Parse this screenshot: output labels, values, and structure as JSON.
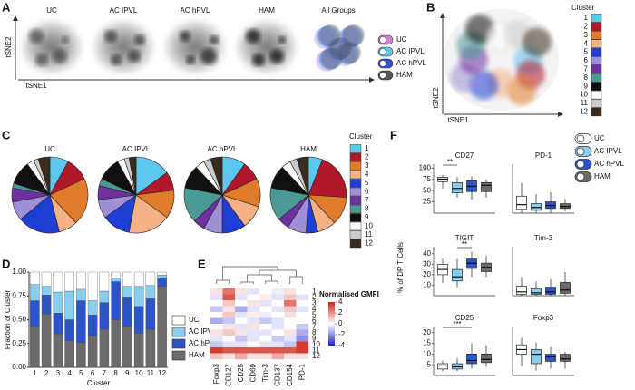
{
  "chart_data": [
    {
      "type": "tsne",
      "panel_label": "A",
      "groups": [
        "UC",
        "AC IPVL",
        "AC hPVL",
        "HAM",
        "All Groups"
      ],
      "xlabel": "tSNE1",
      "ylabel": "tSNE2",
      "legend": {
        "names": [
          "UC",
          "AC IPVL",
          "AC hPVL",
          "HAM"
        ],
        "colors": [
          "#d77fd8",
          "#5cc8f0",
          "#3050d8",
          "#555555"
        ]
      }
    },
    {
      "type": "tsne-clusters",
      "panel_label": "B",
      "legend_title": "Cluster",
      "xlabel": "tSNE1",
      "ylabel": "tSNE2",
      "clusters": [
        "1",
        "2",
        "3",
        "4",
        "5",
        "6",
        "7",
        "8",
        "9",
        "10",
        "11",
        "12"
      ],
      "colors": [
        "#5cc8f0",
        "#b2182b",
        "#e07b29",
        "#f4b183",
        "#1f3ed6",
        "#9e8fd6",
        "#7030a0",
        "#4a9a96",
        "#111111",
        "#ffffff",
        "#cccccc",
        "#3b2a1e"
      ]
    },
    {
      "type": "pie",
      "panel_label": "C",
      "legend_title": "Cluster",
      "categories": [
        "1",
        "2",
        "3",
        "4",
        "5",
        "6",
        "7",
        "8",
        "9",
        "10",
        "11",
        "12"
      ],
      "colors": [
        "#5cc8f0",
        "#b2182b",
        "#e07b29",
        "#f4b183",
        "#1f3ed6",
        "#9e8fd6",
        "#7030a0",
        "#4a9a96",
        "#111111",
        "#ffffff",
        "#cccccc",
        "#3b2a1e"
      ],
      "pies": [
        {
          "title": "UC",
          "values": [
            8,
            10,
            20,
            8,
            18,
            8,
            6,
            2,
            10,
            3,
            2,
            5
          ]
        },
        {
          "title": "AC IPVL",
          "values": [
            15,
            8,
            12,
            18,
            12,
            8,
            6,
            3,
            10,
            3,
            2,
            3
          ]
        },
        {
          "title": "AC hPVL",
          "values": [
            10,
            8,
            12,
            10,
            10,
            8,
            5,
            15,
            10,
            4,
            3,
            5
          ]
        },
        {
          "title": "HAM",
          "values": [
            6,
            20,
            12,
            8,
            5,
            8,
            5,
            14,
            10,
            4,
            3,
            5
          ]
        }
      ]
    },
    {
      "type": "stacked-bar",
      "panel_label": "D",
      "ylabel": "Fraction of Cluster",
      "xlabel": "Cluster",
      "categories": [
        "1",
        "2",
        "3",
        "4",
        "5",
        "6",
        "7",
        "8",
        "9",
        "10",
        "11",
        "12"
      ],
      "ylim": [
        0,
        1
      ],
      "yticks": [
        {
          "value": 0,
          "label": "0.00"
        },
        {
          "value": 0.25,
          "label": "0.25"
        },
        {
          "value": 0.5,
          "label": "0.50"
        },
        {
          "value": 0.75,
          "label": "0.75"
        },
        {
          "value": 1,
          "label": "1.00"
        }
      ],
      "series": [
        {
          "name": "HAM",
          "color": "#6b6b6b",
          "values": [
            0.43,
            0.56,
            0.35,
            0.28,
            0.26,
            0.33,
            0.4,
            0.5,
            0.43,
            0.36,
            0.4,
            0.85
          ]
        },
        {
          "name": "AC hPVL",
          "color": "#2a54c8",
          "values": [
            0.27,
            0.2,
            0.22,
            0.22,
            0.44,
            0.22,
            0.28,
            0.4,
            0.3,
            0.28,
            0.32,
            0.08
          ]
        },
        {
          "name": "AC IPVL",
          "color": "#87cdee",
          "values": [
            0.17,
            0.09,
            0.22,
            0.3,
            0.12,
            0.15,
            0.12,
            0.04,
            0.12,
            0.21,
            0.14,
            0.04
          ]
        },
        {
          "name": "UC",
          "color": "#ffffff",
          "values": [
            0.13,
            0.15,
            0.21,
            0.2,
            0.18,
            0.3,
            0.2,
            0.06,
            0.15,
            0.15,
            0.14,
            0.03
          ]
        }
      ]
    },
    {
      "type": "heatmap",
      "panel_label": "E",
      "colorbar_title": "Normalised GMFI",
      "columns": [
        "Foxp3",
        "CD127",
        "CD25",
        "CD69",
        "Tim-3",
        "CD137",
        "CD154",
        "PD-1"
      ],
      "rows": [
        "1",
        "2",
        "3",
        "4",
        "5",
        "6",
        "7",
        "8",
        "9",
        "10",
        "11",
        "12"
      ],
      "clim": [
        -4,
        4
      ],
      "cticks": [
        4,
        2,
        0,
        -2,
        -4
      ],
      "values": [
        [
          0.5,
          2.5,
          0.5,
          -0.5,
          0,
          -0.3,
          0.5,
          0
        ],
        [
          -0.5,
          3,
          -0.5,
          0,
          0.3,
          -0.5,
          1,
          -0.5
        ],
        [
          0,
          1,
          0,
          0.5,
          -0.5,
          0,
          2.5,
          0
        ],
        [
          -1,
          0.5,
          -1.5,
          -0.5,
          0,
          -0.5,
          1,
          -0.5
        ],
        [
          0,
          1,
          -0.5,
          0.3,
          -0.3,
          0,
          0.5,
          0
        ],
        [
          -1.5,
          -1,
          0,
          -0.5,
          -1,
          -0.5,
          0,
          0
        ],
        [
          0,
          0.5,
          -0.5,
          0.5,
          0,
          -0.5,
          0,
          -1
        ],
        [
          0.5,
          1,
          0.5,
          -0.5,
          -0.5,
          0,
          0.5,
          -1.5
        ],
        [
          -0.5,
          0,
          -1,
          -0.5,
          0,
          -1,
          -0.5,
          -2
        ],
        [
          -1,
          -0.5,
          -0.5,
          0,
          -0.5,
          -0.5,
          -1,
          3.5
        ],
        [
          3.5,
          3,
          3,
          3,
          3,
          3,
          3,
          3.5
        ],
        [
          1,
          0.5,
          1.5,
          0.5,
          0.5,
          1.5,
          0.5,
          0.5
        ]
      ]
    },
    {
      "type": "box",
      "panel_label": "F",
      "ylabel": "% of DP T Cells",
      "groups": [
        "UC",
        "AC IPVL",
        "AC hPVL",
        "HAM"
      ],
      "colors": [
        "#ffffff",
        "#87cdee",
        "#2a54c8",
        "#6b6b6b"
      ],
      "panels": [
        {
          "title": "CD27",
          "ylim": [
            0,
            105
          ],
          "yticks": [
            25,
            50,
            75,
            100
          ],
          "annotation": "**",
          "between": [
            "UC",
            "AC IPVL"
          ],
          "boxes": [
            [
              55,
              70,
              76,
              80,
              85
            ],
            [
              35,
              45,
              55,
              68,
              80
            ],
            [
              30,
              48,
              60,
              72,
              82
            ],
            [
              35,
              48,
              62,
              68,
              75
            ]
          ]
        },
        {
          "title": "PD-1",
          "ylim": [
            0,
            5
          ],
          "boxes": [
            [
              0,
              0.4,
              0.9,
              1.8,
              3.2
            ],
            [
              0,
              0.3,
              0.6,
              1.0,
              2.0
            ],
            [
              0,
              0.5,
              0.8,
              1.2,
              2.2
            ],
            [
              0.2,
              0.5,
              0.7,
              1.0,
              1.5
            ]
          ]
        },
        {
          "title": "TIGIT",
          "ylim": [
            0,
            45
          ],
          "yticks": [
            10,
            20,
            30,
            40
          ],
          "annotation": "**",
          "between": [
            "AC IPVL",
            "AC hPVL"
          ],
          "boxes": [
            [
              12,
              20,
              25,
              30,
              35
            ],
            [
              8,
              14,
              18,
              25,
              35
            ],
            [
              18,
              26,
              31,
              35,
              42
            ],
            [
              18,
              23,
              27,
              31,
              38
            ]
          ]
        },
        {
          "title": "Tim-3",
          "ylim": [
            0,
            10
          ],
          "boxes": [
            [
              0,
              0.3,
              0.8,
              2,
              4
            ],
            [
              0,
              0.3,
              0.6,
              1.5,
              3
            ],
            [
              0,
              0.3,
              0.8,
              1.8,
              3.5
            ],
            [
              0,
              0.5,
              1.2,
              2.8,
              5
            ]
          ]
        },
        {
          "title": "CD25",
          "ylim": [
            0,
            22
          ],
          "yticks": [
            5,
            10,
            15,
            20
          ],
          "annotation": "***",
          "between": [
            "UC",
            "AC hPVL"
          ],
          "boxes": [
            [
              2,
              3,
              4.5,
              5.5,
              7
            ],
            [
              2,
              3,
              4,
              5.5,
              8
            ],
            [
              3,
              5.5,
              7,
              10,
              15
            ],
            [
              4,
              6,
              7.5,
              10,
              14
            ]
          ]
        },
        {
          "title": "Foxp3",
          "ylim": [
            0,
            10
          ],
          "boxes": [
            [
              2,
              4.5,
              5.5,
              6.5,
              8
            ],
            [
              1,
              2.5,
              4.5,
              5.5,
              7
            ],
            [
              1.5,
              3,
              4,
              4.5,
              6
            ],
            [
              1.5,
              3,
              3.5,
              4.5,
              5
            ]
          ]
        }
      ]
    }
  ]
}
